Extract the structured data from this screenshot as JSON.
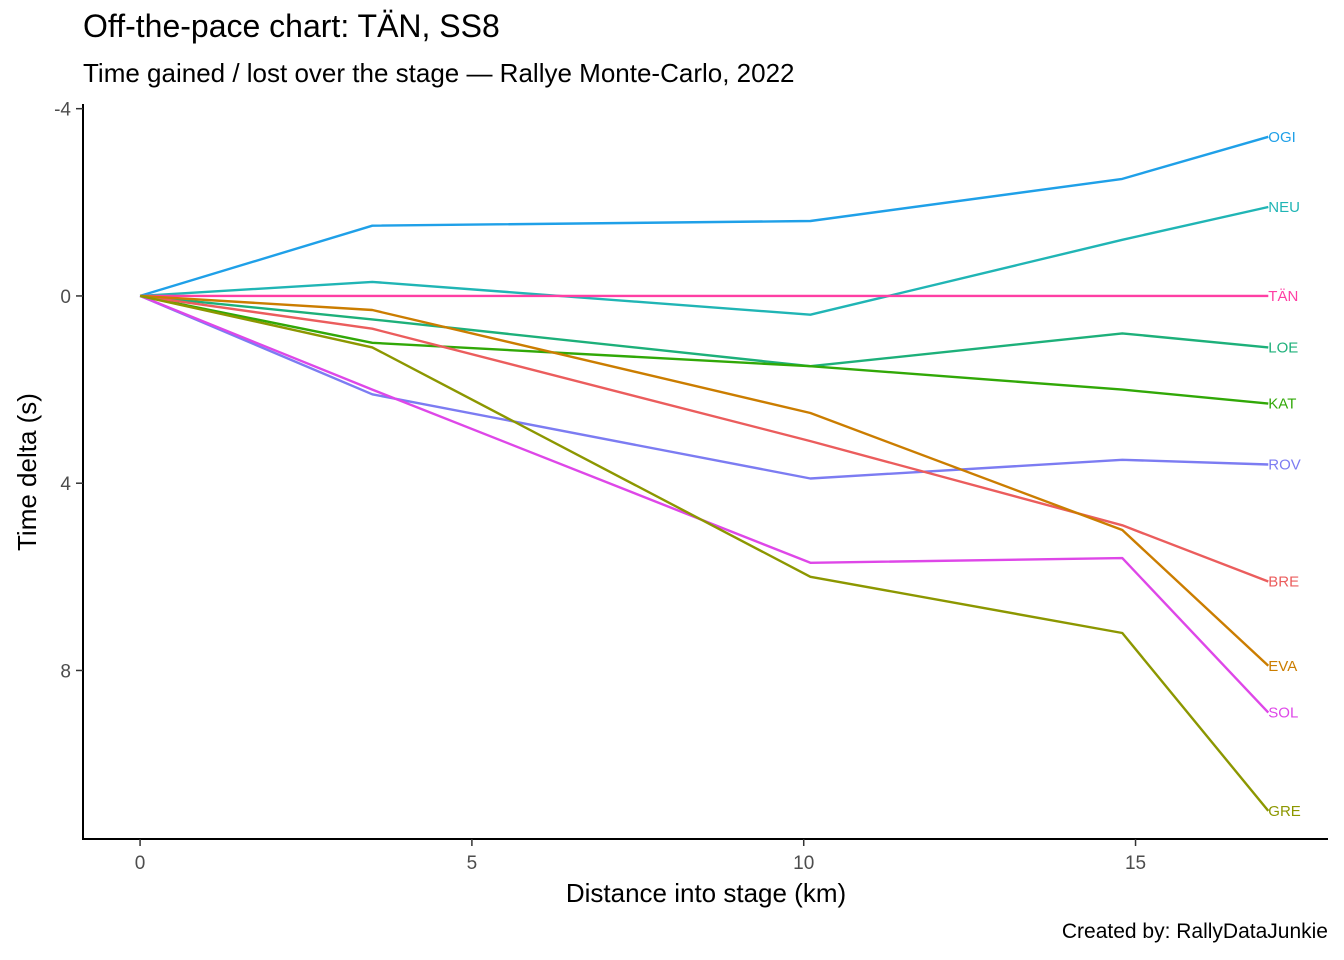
{
  "title": "Off-the-pace chart: TÄN, SS8",
  "subtitle": "Time gained / lost over the stage — Rallye Monte-Carlo, 2022",
  "caption": "Created by: RallyDataJunkie",
  "chart_data": {
    "type": "line",
    "xlabel": "Distance into stage (km)",
    "ylabel": "Time delta (s)",
    "xlim": [
      -0.86,
      17.9
    ],
    "ylim": [
      -4.1,
      11.6
    ],
    "y_reversed": true,
    "grid": false,
    "legend": "none (labels at line ends)",
    "xticks": [
      0,
      5,
      10,
      15
    ],
    "yticks": [
      -4,
      0,
      4,
      8
    ],
    "x": [
      0,
      3.5,
      10.1,
      14.8,
      17.0
    ],
    "series": [
      {
        "name": "OGI",
        "color": "#1FA0E8",
        "values": [
          0,
          -1.5,
          -1.6,
          -2.5,
          -3.4
        ]
      },
      {
        "name": "NEU",
        "color": "#20B5B5",
        "values": [
          0,
          -0.3,
          0.4,
          -1.2,
          -1.9
        ]
      },
      {
        "name": "TÄN",
        "color": "#FF3FA4",
        "values": [
          0,
          0,
          0,
          0,
          0
        ]
      },
      {
        "name": "LOE",
        "color": "#1DB07A",
        "values": [
          0,
          0.5,
          1.5,
          0.8,
          1.1
        ]
      },
      {
        "name": "KAT",
        "color": "#31A807",
        "values": [
          0,
          1.0,
          1.5,
          2.0,
          2.3
        ]
      },
      {
        "name": "ROV",
        "color": "#7C7CF2",
        "values": [
          0,
          2.1,
          3.9,
          3.5,
          3.6
        ]
      },
      {
        "name": "BRE",
        "color": "#EB5D5D",
        "values": [
          0,
          0.7,
          3.1,
          4.9,
          6.1
        ]
      },
      {
        "name": "EVA",
        "color": "#CB7D00",
        "values": [
          0,
          0.3,
          2.5,
          5.0,
          7.9
        ]
      },
      {
        "name": "SOL",
        "color": "#DE47E8",
        "values": [
          0,
          2.0,
          5.7,
          5.6,
          8.9
        ]
      },
      {
        "name": "GRE",
        "color": "#8C9700",
        "values": [
          0,
          1.1,
          6.0,
          7.2,
          11.0
        ]
      }
    ]
  }
}
